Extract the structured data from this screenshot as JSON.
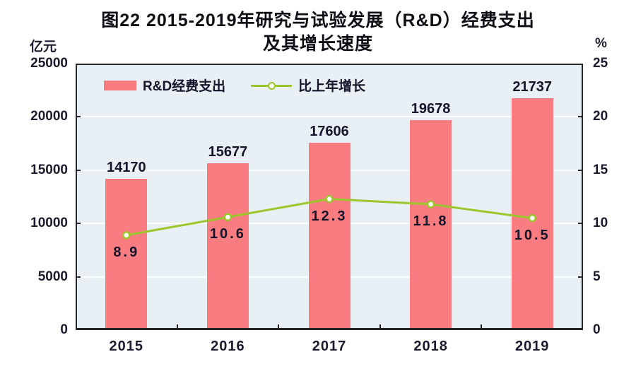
{
  "title": {
    "line1": "图22  2015-2019年研究与试验发展（R&D）经费支出",
    "line2": "及其增长速度"
  },
  "axes": {
    "left_unit": "亿元",
    "right_unit": "%",
    "left_ticks": [
      "25000",
      "20000",
      "15000",
      "10000",
      "5000",
      "0"
    ],
    "right_ticks": [
      "25",
      "20",
      "15",
      "10",
      "5",
      "0"
    ]
  },
  "legend": [
    {
      "label": "R&D经费支出",
      "swatch": "bar"
    },
    {
      "label": "比上年增长",
      "swatch": "line-marker"
    }
  ],
  "colors": {
    "bar": "#f97c80",
    "line": "#9dc62d",
    "marker_fill": "#ffffff",
    "plot_background": "#e9f0f5",
    "gridline": "#fdfeff",
    "axis": "#26262b",
    "text": "#1a1a2e"
  },
  "chart_data": {
    "type": "bar",
    "subtype": "bar+line dual axis",
    "title": "图22 2015-2019年研究与试验发展（R&D）经费支出及其增长速度",
    "categories": [
      "2015",
      "2016",
      "2017",
      "2018",
      "2019"
    ],
    "series": [
      {
        "name": "R&D经费支出",
        "type": "bar",
        "axis": "left",
        "unit": "亿元",
        "values": [
          14170,
          15677,
          17606,
          19678,
          21737
        ]
      },
      {
        "name": "比上年增长",
        "type": "line",
        "axis": "right",
        "unit": "%",
        "values": [
          8.9,
          10.6,
          12.3,
          11.8,
          10.5
        ]
      }
    ],
    "left_ylim": [
      0,
      25000
    ],
    "right_ylim": [
      0,
      25
    ],
    "left_tick_step": 5000,
    "right_tick_step": 5,
    "grid": true,
    "legend_position": "top-left-inside"
  }
}
